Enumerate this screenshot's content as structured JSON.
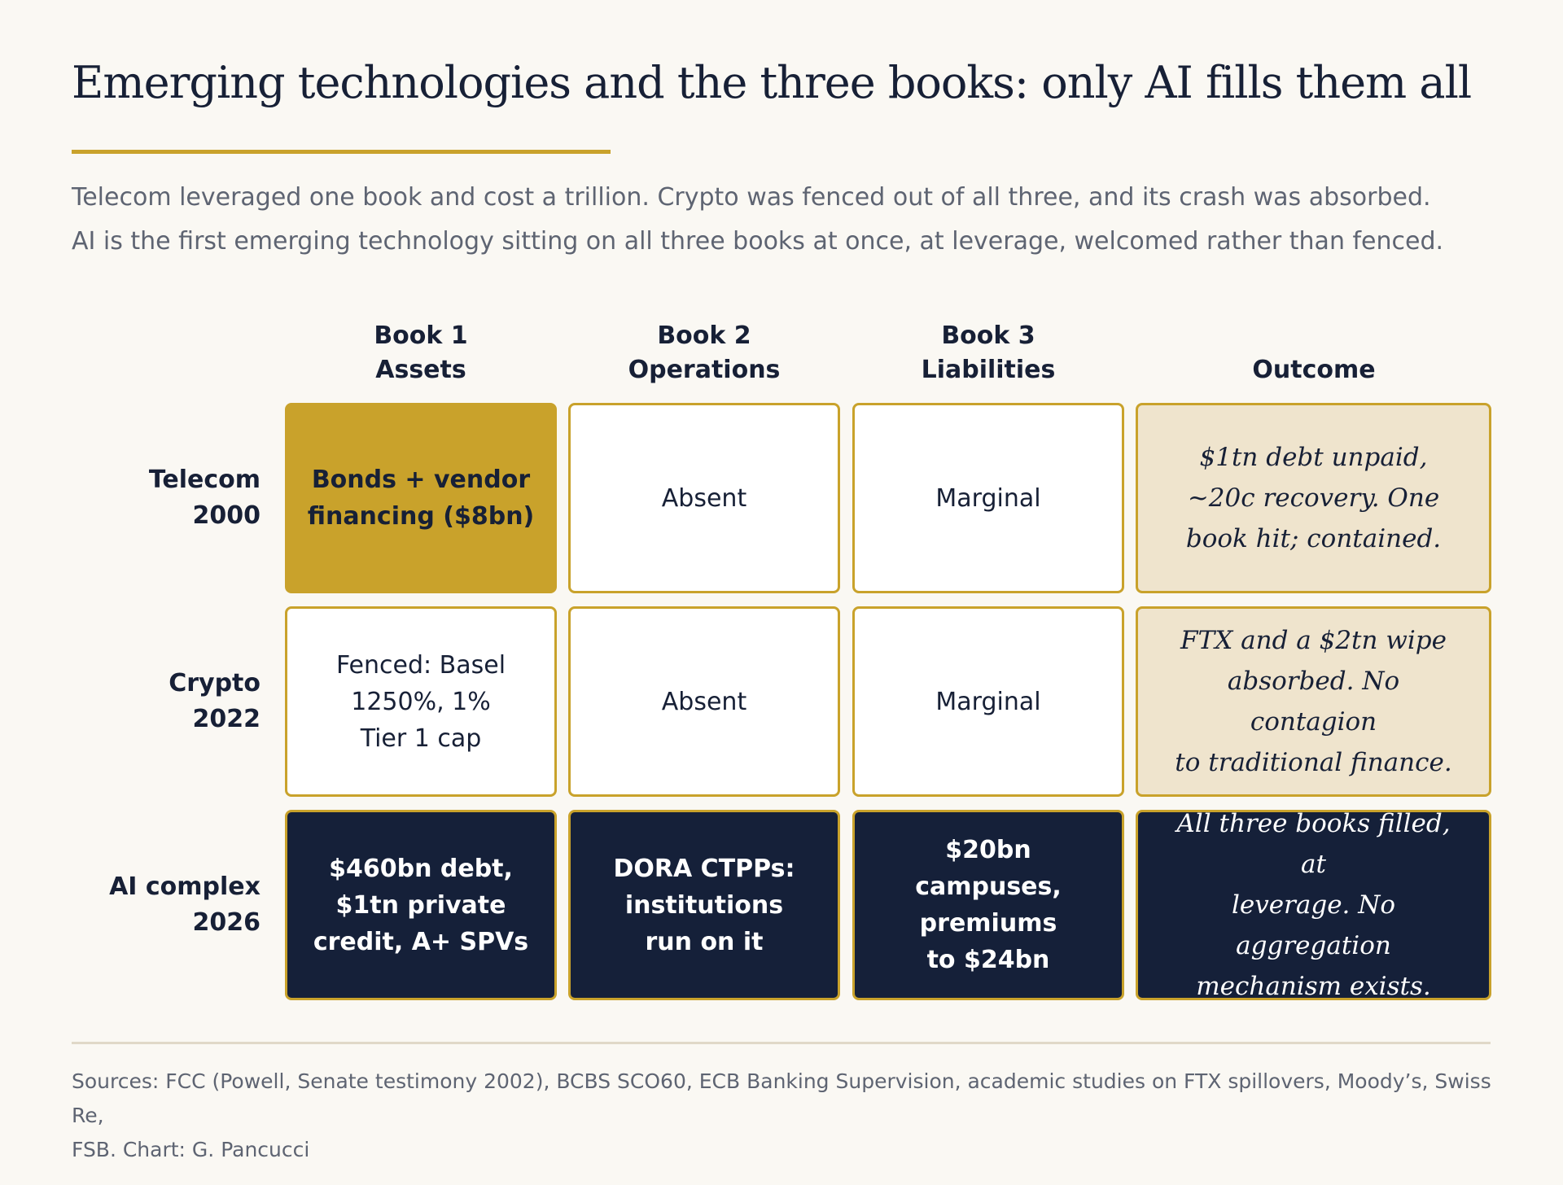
{
  "title": "Emerging technologies and the three books: only AI fills them all",
  "subtitle": [
    "Telecom leveraged one book and cost a trillion. Crypto was fenced out of all three, and its crash was absorbed.",
    "AI is the first emerging technology sitting on all three books at once, at leverage, welcomed rather than fenced."
  ],
  "columns": [
    {
      "line1": "Book 1",
      "line2": "Assets"
    },
    {
      "line1": "Book 2",
      "line2": "Operations"
    },
    {
      "line1": "Book 3",
      "line2": "Liabilities"
    },
    {
      "line1": "",
      "line2": "Outcome"
    }
  ],
  "rows": [
    {
      "name": "Telecom",
      "year": "2000",
      "cells": [
        {
          "lines": [
            "Bonds + vendor",
            "financing ($8bn)"
          ],
          "style": "gold"
        },
        {
          "lines": [
            "Absent"
          ],
          "style": "white"
        },
        {
          "lines": [
            "Marginal"
          ],
          "style": "white"
        }
      ],
      "outcome": {
        "lines": [
          "$1tn debt unpaid,",
          "~20c recovery. One",
          "book hit; contained."
        ],
        "style": "beige"
      }
    },
    {
      "name": "Crypto",
      "year": "2022",
      "cells": [
        {
          "lines": [
            "Fenced: Basel",
            "1250%, 1%",
            "Tier 1 cap"
          ],
          "style": "white"
        },
        {
          "lines": [
            "Absent"
          ],
          "style": "white"
        },
        {
          "lines": [
            "Marginal"
          ],
          "style": "white"
        }
      ],
      "outcome": {
        "lines": [
          "FTX and a $2tn wipe",
          "absorbed. No contagion",
          "to traditional finance."
        ],
        "style": "beige"
      }
    },
    {
      "name": "AI complex",
      "year": "2026",
      "cells": [
        {
          "lines": [
            "$460bn debt,",
            "$1tn private",
            "credit, A+ SPVs"
          ],
          "style": "navy"
        },
        {
          "lines": [
            "DORA CTPPs:",
            "institutions",
            "run on it"
          ],
          "style": "navy"
        },
        {
          "lines": [
            "$20bn campuses,",
            "premiums",
            "to $24bn"
          ],
          "style": "navy"
        }
      ],
      "outcome": {
        "lines": [
          "All three books filled, at",
          "leverage. No aggregation",
          "mechanism exists."
        ],
        "style": "navy"
      }
    }
  ],
  "colors": {
    "gold": "#c9a22b",
    "navy": "#152039",
    "beige": "#efe4cd",
    "background": "#faf8f3"
  },
  "sources": [
    "Sources: FCC (Powell, Senate testimony 2002), BCBS SCO60, ECB Banking Supervision, academic studies on FTX spillovers, Moody’s, Swiss Re,",
    "FSB. Chart: G. Pancucci"
  ]
}
